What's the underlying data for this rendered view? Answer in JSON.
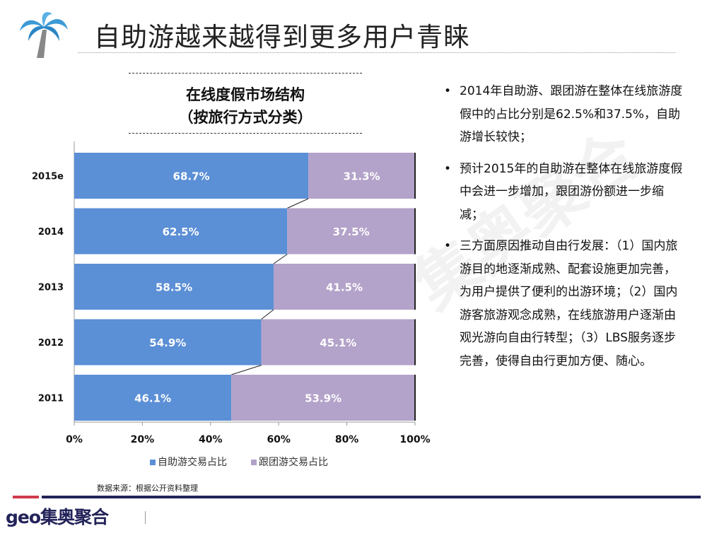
{
  "header": {
    "title": "自助游越来越得到更多用户青睐",
    "logo_icon": "palm-tree-icon"
  },
  "chart_data": {
    "type": "bar",
    "orientation": "horizontal-stacked-100",
    "title": "在线度假市场结构",
    "subtitle": "（按旅行方式分类）",
    "categories": [
      "2015e",
      "2014",
      "2013",
      "2012",
      "2011"
    ],
    "series": [
      {
        "name": "自助游交易占比",
        "color": "#5b8fd6",
        "values": [
          68.7,
          62.5,
          58.5,
          54.9,
          46.1
        ],
        "labels": [
          "68.7%",
          "62.5%",
          "58.5%",
          "54.9%",
          "46.1%"
        ]
      },
      {
        "name": "跟团游交易占比",
        "color": "#b3a2c9",
        "values": [
          31.3,
          37.5,
          41.5,
          45.1,
          53.9
        ],
        "labels": [
          "31.3%",
          "37.5%",
          "41.5%",
          "45.1%",
          "53.9%"
        ]
      }
    ],
    "xticks": [
      "0%",
      "20%",
      "40%",
      "60%",
      "80%",
      "100%"
    ],
    "xlim": [
      0,
      100
    ],
    "legend": "bottom",
    "series_lines": true
  },
  "bullets": [
    "2014年自助游、跟团游在整体在线旅游度假中的占比分别是62.5%和37.5%，自助游增长较快；",
    "预计2015年的自助游在整体在线旅游度假中会进一步增加，跟团游份额进一步缩减；",
    "三方面原因推动自由行发展：（1）国内旅游目的地逐渐成熟、配套设施更加完善，为用户提供了便利的出游环境；（2）国内游客旅游观念成熟，在线旅游用户逐渐由观光游向自由行转型；（3）LBS服务逐步完善，使得自由行更加方便、随心。"
  ],
  "source": "数据来源：根据公开资料整理",
  "footer": {
    "logo_text": "geo集奥聚合",
    "colors": {
      "red": "#d0394b",
      "navy": "#23235a"
    }
  },
  "watermark": "集奥聚合"
}
